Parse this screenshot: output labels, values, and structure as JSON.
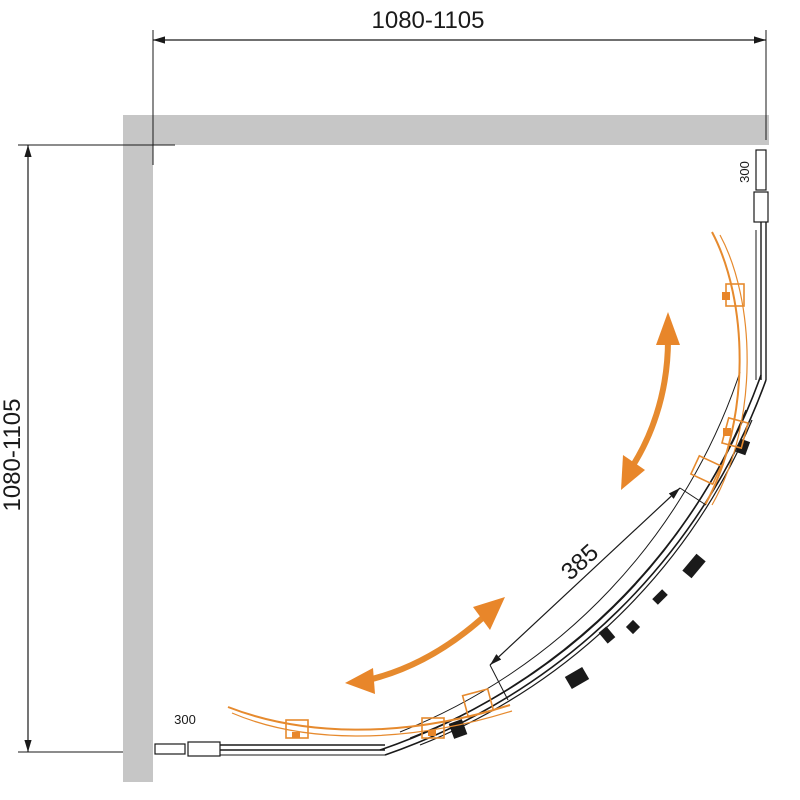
{
  "dimensions": {
    "top_width": "1080-1105",
    "left_height": "1080-1105",
    "door_opening": "385",
    "top_profile_adjust": "300",
    "bottom_profile_adjust": "300"
  },
  "colors": {
    "wall": "#c6c6c6",
    "line": "#1a1a1a",
    "door_open_accent": "#e8862a",
    "arrow": "#e8862a"
  }
}
